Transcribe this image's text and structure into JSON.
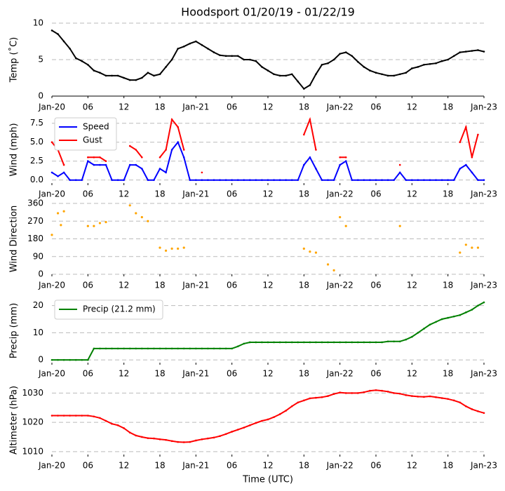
{
  "chart_data": [
    {
      "type": "line",
      "title": "Hoodsport 01/20/19 - 01/22/19",
      "ylabel": "Temp (˚C)",
      "xlim": [
        0,
        72
      ],
      "xticks": [
        {
          "value": 0,
          "label": "Jan-20"
        },
        {
          "value": 6,
          "label": "06"
        },
        {
          "value": 12,
          "label": "12"
        },
        {
          "value": 18,
          "label": "18"
        },
        {
          "value": 24,
          "label": "Jan-21"
        },
        {
          "value": 30,
          "label": "06"
        },
        {
          "value": 36,
          "label": "12"
        },
        {
          "value": 42,
          "label": "18"
        },
        {
          "value": 48,
          "label": "Jan-22"
        },
        {
          "value": 54,
          "label": "06"
        },
        {
          "value": 60,
          "label": "12"
        },
        {
          "value": 66,
          "label": "18"
        },
        {
          "value": 72,
          "label": "Jan-23"
        }
      ],
      "ylim": [
        0,
        10
      ],
      "yticks": [
        0,
        5,
        10
      ],
      "grid": true,
      "x": [
        0,
        1,
        2,
        3,
        4,
        5,
        6,
        7,
        8,
        9,
        10,
        11,
        12,
        13,
        14,
        15,
        16,
        17,
        18,
        19,
        20,
        21,
        22,
        23,
        24,
        25,
        26,
        27,
        28,
        29,
        30,
        31,
        32,
        33,
        34,
        35,
        36,
        37,
        38,
        39,
        40,
        41,
        42,
        43,
        44,
        45,
        46,
        47,
        48,
        49,
        50,
        51,
        52,
        53,
        54,
        55,
        56,
        57,
        58,
        59,
        60,
        61,
        62,
        63,
        64,
        65,
        66,
        67,
        68,
        69,
        70,
        71,
        72
      ],
      "series": [
        {
          "color": "#000000",
          "values": [
            9,
            8.5,
            7.5,
            6.5,
            5.2,
            4.8,
            4.3,
            3.5,
            3.2,
            2.8,
            2.8,
            2.8,
            2.5,
            2.2,
            2.2,
            2.5,
            3.2,
            2.8,
            3,
            4,
            5,
            6.5,
            6.8,
            7.2,
            7.5,
            7,
            6.5,
            6,
            5.6,
            5.5,
            5.5,
            5.5,
            5,
            5,
            4.8,
            4,
            3.5,
            3,
            2.8,
            2.8,
            3,
            2,
            1,
            1.5,
            3,
            4.3,
            4.5,
            5,
            5.8,
            6,
            5.5,
            4.7,
            4,
            3.5,
            3.2,
            3,
            2.8,
            2.8,
            3,
            3.2,
            3.8,
            4,
            4.3,
            4.4,
            4.5,
            4.8,
            5,
            5.5,
            6,
            6.1,
            6.2,
            6.3,
            6.1
          ]
        }
      ]
    },
    {
      "type": "line",
      "ylabel": "Wind (mph)",
      "legend": "upper left",
      "xlim": [
        0,
        72
      ],
      "xticks": [
        {
          "value": 0,
          "label": "Jan-20"
        },
        {
          "value": 6,
          "label": "06"
        },
        {
          "value": 12,
          "label": "12"
        },
        {
          "value": 18,
          "label": "18"
        },
        {
          "value": 24,
          "label": "Jan-21"
        },
        {
          "value": 30,
          "label": "06"
        },
        {
          "value": 36,
          "label": "12"
        },
        {
          "value": 42,
          "label": "18"
        },
        {
          "value": 48,
          "label": "Jan-22"
        },
        {
          "value": 54,
          "label": "06"
        },
        {
          "value": 60,
          "label": "12"
        },
        {
          "value": 66,
          "label": "18"
        },
        {
          "value": 72,
          "label": "Jan-23"
        }
      ],
      "ylim": [
        -0.4,
        8.4
      ],
      "yticks": [
        {
          "value": 0,
          "label": "0.0"
        },
        {
          "value": 2.5,
          "label": "2.5"
        },
        {
          "value": 5,
          "label": "5.0"
        },
        {
          "value": 7.5,
          "label": "7.5"
        }
      ],
      "grid": true,
      "x": [
        0,
        1,
        2,
        3,
        4,
        5,
        6,
        7,
        8,
        9,
        10,
        11,
        12,
        13,
        14,
        15,
        16,
        17,
        18,
        19,
        20,
        21,
        22,
        23,
        24,
        25,
        26,
        27,
        28,
        29,
        30,
        31,
        32,
        33,
        34,
        35,
        36,
        37,
        38,
        39,
        40,
        41,
        42,
        43,
        44,
        45,
        46,
        47,
        48,
        49,
        50,
        51,
        52,
        53,
        54,
        55,
        56,
        57,
        58,
        59,
        60,
        61,
        62,
        63,
        64,
        65,
        66,
        67,
        68,
        69,
        70,
        71,
        72
      ],
      "series": [
        {
          "name": "Speed",
          "color": "#0000ff",
          "values": [
            1,
            0.5,
            1,
            0,
            0,
            0,
            2.5,
            2,
            2,
            2,
            0,
            0,
            0,
            2,
            2,
            1.5,
            0,
            0,
            1.5,
            1,
            4,
            5,
            3,
            0,
            0,
            0,
            0,
            0,
            0,
            0,
            0,
            0,
            0,
            0,
            0,
            0,
            0,
            0,
            0,
            0,
            0,
            0,
            2,
            3,
            1.5,
            0,
            0,
            0,
            2,
            2.5,
            0,
            0,
            0,
            0,
            0,
            0,
            0,
            0,
            1,
            0,
            0,
            0,
            0,
            0,
            0,
            0,
            0,
            0,
            1.5,
            2,
            1,
            0,
            0
          ]
        },
        {
          "name": "Gust",
          "color": "#ff0000",
          "values": [
            5,
            4,
            2,
            null,
            null,
            null,
            3,
            3,
            3,
            2.5,
            null,
            null,
            null,
            4.5,
            4,
            3,
            null,
            null,
            3,
            4,
            8,
            7,
            4,
            null,
            null,
            1,
            null,
            null,
            null,
            null,
            null,
            null,
            null,
            null,
            null,
            null,
            null,
            null,
            null,
            null,
            null,
            null,
            6,
            8,
            4,
            null,
            null,
            null,
            3,
            3,
            null,
            null,
            null,
            null,
            null,
            null,
            null,
            null,
            2,
            null,
            null,
            null,
            null,
            null,
            null,
            null,
            null,
            null,
            5,
            7,
            3,
            6,
            null
          ]
        }
      ]
    },
    {
      "type": "scatter",
      "ylabel": "Wind Direction",
      "xlim": [
        0,
        72
      ],
      "xticks": [
        {
          "value": 0,
          "label": "Jan-20"
        },
        {
          "value": 6,
          "label": "06"
        },
        {
          "value": 12,
          "label": "12"
        },
        {
          "value": 18,
          "label": "18"
        },
        {
          "value": 24,
          "label": "Jan-21"
        },
        {
          "value": 30,
          "label": "06"
        },
        {
          "value": 36,
          "label": "12"
        },
        {
          "value": 42,
          "label": "18"
        },
        {
          "value": 48,
          "label": "Jan-22"
        },
        {
          "value": 54,
          "label": "06"
        },
        {
          "value": 60,
          "label": "12"
        },
        {
          "value": 66,
          "label": "18"
        },
        {
          "value": 72,
          "label": "Jan-23"
        }
      ],
      "ylim": [
        0,
        360
      ],
      "yticks": [
        0,
        90,
        180,
        270,
        360
      ],
      "grid": true,
      "x": [
        0,
        1,
        1.5,
        2,
        6,
        7,
        8,
        9,
        13,
        14,
        15,
        16,
        18,
        19,
        20,
        21,
        22,
        42,
        43,
        44,
        46,
        47,
        48,
        49,
        58,
        68,
        69,
        70,
        71
      ],
      "series": [
        {
          "color": "#ffa500",
          "values": [
            200,
            310,
            250,
            320,
            245,
            245,
            260,
            265,
            350,
            310,
            290,
            270,
            135,
            120,
            130,
            130,
            135,
            130,
            115,
            110,
            50,
            20,
            290,
            245,
            245,
            110,
            150,
            135,
            135
          ]
        }
      ]
    },
    {
      "type": "line",
      "ylabel": "Precip (mm)",
      "legend": "upper left",
      "xlim": [
        0,
        72
      ],
      "xticks": [
        {
          "value": 0,
          "label": "Jan-20"
        },
        {
          "value": 6,
          "label": "06"
        },
        {
          "value": 12,
          "label": "12"
        },
        {
          "value": 18,
          "label": "18"
        },
        {
          "value": 24,
          "label": "Jan-21"
        },
        {
          "value": 30,
          "label": "06"
        },
        {
          "value": 36,
          "label": "12"
        },
        {
          "value": 42,
          "label": "18"
        },
        {
          "value": 48,
          "label": "Jan-22"
        },
        {
          "value": 54,
          "label": "06"
        },
        {
          "value": 60,
          "label": "12"
        },
        {
          "value": 66,
          "label": "18"
        },
        {
          "value": 72,
          "label": "Jan-23"
        }
      ],
      "ylim": [
        -1,
        22.5
      ],
      "yticks": [
        0,
        10,
        20
      ],
      "grid": true,
      "x": [
        0,
        1,
        2,
        3,
        4,
        5,
        6,
        7,
        8,
        9,
        10,
        11,
        12,
        13,
        14,
        15,
        16,
        17,
        18,
        19,
        20,
        21,
        22,
        23,
        24,
        25,
        26,
        27,
        28,
        29,
        30,
        31,
        32,
        33,
        34,
        35,
        36,
        37,
        38,
        39,
        40,
        41,
        42,
        43,
        44,
        45,
        46,
        47,
        48,
        49,
        50,
        51,
        52,
        53,
        54,
        55,
        56,
        57,
        58,
        59,
        60,
        61,
        62,
        63,
        64,
        65,
        66,
        67,
        68,
        69,
        70,
        71,
        72
      ],
      "series": [
        {
          "name": "Precip (21.2 mm)",
          "color": "#008000",
          "values": [
            0,
            0,
            0,
            0,
            0,
            0,
            0,
            4.2,
            4.2,
            4.2,
            4.2,
            4.2,
            4.2,
            4.2,
            4.2,
            4.2,
            4.2,
            4.2,
            4.2,
            4.2,
            4.2,
            4.2,
            4.2,
            4.2,
            4.2,
            4.2,
            4.2,
            4.2,
            4.2,
            4.2,
            4.2,
            5,
            6,
            6.5,
            6.5,
            6.5,
            6.5,
            6.5,
            6.5,
            6.5,
            6.5,
            6.5,
            6.5,
            6.5,
            6.5,
            6.5,
            6.5,
            6.5,
            6.5,
            6.5,
            6.5,
            6.5,
            6.5,
            6.5,
            6.5,
            6.5,
            6.8,
            6.8,
            6.8,
            7.5,
            8.5,
            10,
            11.5,
            13,
            14,
            15,
            15.5,
            16,
            16.5,
            17.5,
            18.5,
            20,
            21.2
          ]
        }
      ]
    },
    {
      "type": "line",
      "ylabel": "Altimeter (hPa)",
      "xlabel": "Time (UTC)",
      "xlim": [
        0,
        72
      ],
      "xticks": [
        {
          "value": 0,
          "label": "Jan-20"
        },
        {
          "value": 6,
          "label": "06"
        },
        {
          "value": 12,
          "label": "12"
        },
        {
          "value": 18,
          "label": "18"
        },
        {
          "value": 24,
          "label": "Jan-21"
        },
        {
          "value": 30,
          "label": "06"
        },
        {
          "value": 36,
          "label": "12"
        },
        {
          "value": 42,
          "label": "18"
        },
        {
          "value": 48,
          "label": "Jan-22"
        },
        {
          "value": 54,
          "label": "06"
        },
        {
          "value": 60,
          "label": "12"
        },
        {
          "value": 66,
          "label": "18"
        },
        {
          "value": 72,
          "label": "Jan-23"
        }
      ],
      "ylim": [
        1009,
        1032.5
      ],
      "yticks": [
        1010,
        1020,
        1030
      ],
      "grid": true,
      "x": [
        0,
        1,
        2,
        3,
        4,
        5,
        6,
        7,
        8,
        9,
        10,
        11,
        12,
        13,
        14,
        15,
        16,
        17,
        18,
        19,
        20,
        21,
        22,
        23,
        24,
        25,
        26,
        27,
        28,
        29,
        30,
        31,
        32,
        33,
        34,
        35,
        36,
        37,
        38,
        39,
        40,
        41,
        42,
        43,
        44,
        45,
        46,
        47,
        48,
        49,
        50,
        51,
        52,
        53,
        54,
        55,
        56,
        57,
        58,
        59,
        60,
        61,
        62,
        63,
        64,
        65,
        66,
        67,
        68,
        69,
        70,
        71,
        72
      ],
      "series": [
        {
          "color": "#ff0000",
          "values": [
            1022.3,
            1022.3,
            1022.3,
            1022.3,
            1022.3,
            1022.3,
            1022.3,
            1022,
            1021.5,
            1020.5,
            1019.5,
            1019,
            1018,
            1016.5,
            1015.5,
            1015,
            1014.6,
            1014.5,
            1014.2,
            1014,
            1013.6,
            1013.3,
            1013.2,
            1013.3,
            1013.8,
            1014.2,
            1014.5,
            1014.8,
            1015.3,
            1016,
            1016.8,
            1017.5,
            1018.2,
            1019,
            1019.8,
            1020.5,
            1021,
            1021.8,
            1022.8,
            1024,
            1025.5,
            1026.8,
            1027.5,
            1028.2,
            1028.4,
            1028.6,
            1029,
            1029.7,
            1030.2,
            1030,
            1030,
            1030,
            1030.3,
            1030.8,
            1031,
            1030.8,
            1030.5,
            1030,
            1029.8,
            1029.3,
            1029,
            1028.8,
            1028.7,
            1028.9,
            1028.6,
            1028.3,
            1028,
            1027.5,
            1026.8,
            1025.5,
            1024.5,
            1023.8,
            1023.2
          ]
        }
      ]
    }
  ]
}
